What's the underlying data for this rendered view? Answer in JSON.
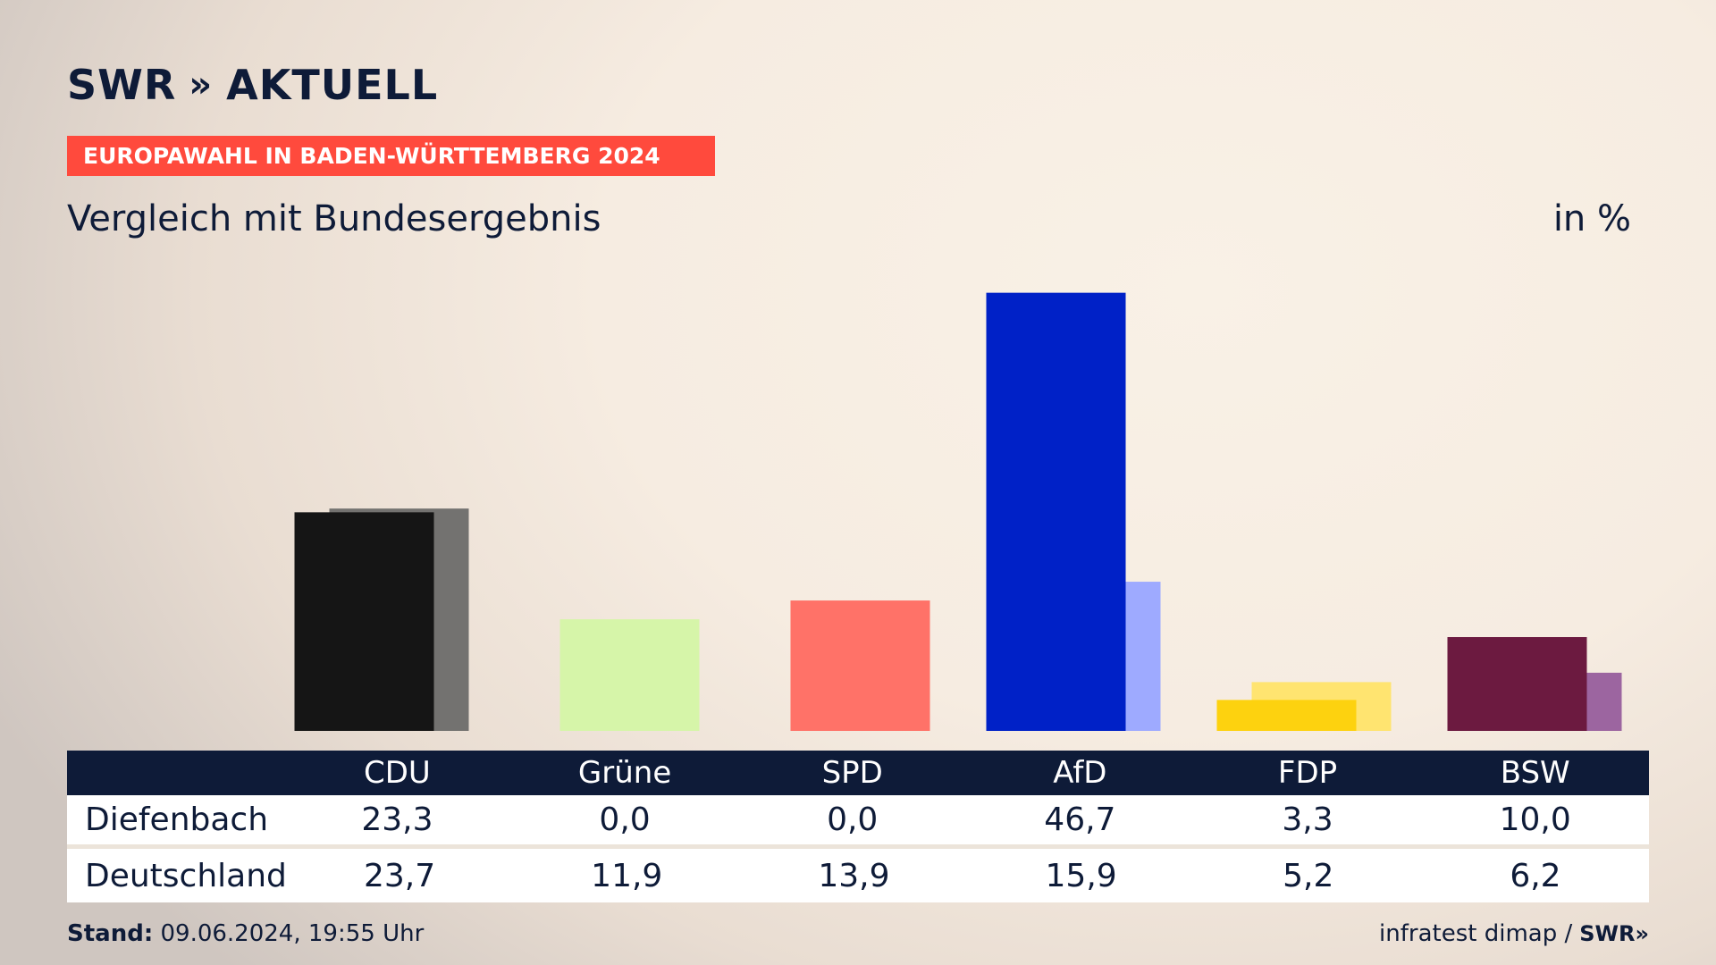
{
  "header": {
    "logo_text": "SWR",
    "logo_chevrons": "»",
    "logo_suffix": "AKTUELL",
    "banner": "EUROPAWAHL IN BADEN-WÜRTTEMBERG 2024",
    "subtitle": "Vergleich mit Bundesergebnis",
    "unit": "in %"
  },
  "chart_data": {
    "type": "bar",
    "categories": [
      "CDU",
      "Grüne",
      "SPD",
      "AfD",
      "FDP",
      "BSW"
    ],
    "series": [
      {
        "name": "Diefenbach",
        "values": [
          23.3,
          0.0,
          0.0,
          46.7,
          3.3,
          10.0
        ]
      },
      {
        "name": "Deutschland",
        "values": [
          23.7,
          11.9,
          13.9,
          15.9,
          5.2,
          6.2
        ]
      }
    ],
    "colors_primary": [
      "#151515",
      "#d6f5a9",
      "#ff7268",
      "#0021c7",
      "#fdd20f",
      "#6c1a40"
    ],
    "colors_secondary": [
      "#737270",
      "#d6f5a9",
      "#ff7268",
      "#9eaaff",
      "#ffe470",
      "#9c65a0"
    ],
    "ylim": [
      0,
      50
    ]
  },
  "table": {
    "headers": [
      "CDU",
      "Grüne",
      "SPD",
      "AfD",
      "FDP",
      "BSW"
    ],
    "rows": [
      {
        "label": "Diefenbach",
        "values": [
          "23,3",
          "0,0",
          "0,0",
          "46,7",
          "3,3",
          "10,0"
        ]
      },
      {
        "label": "Deutschland",
        "values": [
          "23,7",
          "11,9",
          "13,9",
          "15,9",
          "5,2",
          "6,2"
        ]
      }
    ]
  },
  "footer": {
    "stand_label": "Stand:",
    "stand_value": "09.06.2024, 19:55 Uhr",
    "source": "infratest dimap /",
    "source_logo": "SWR»"
  }
}
